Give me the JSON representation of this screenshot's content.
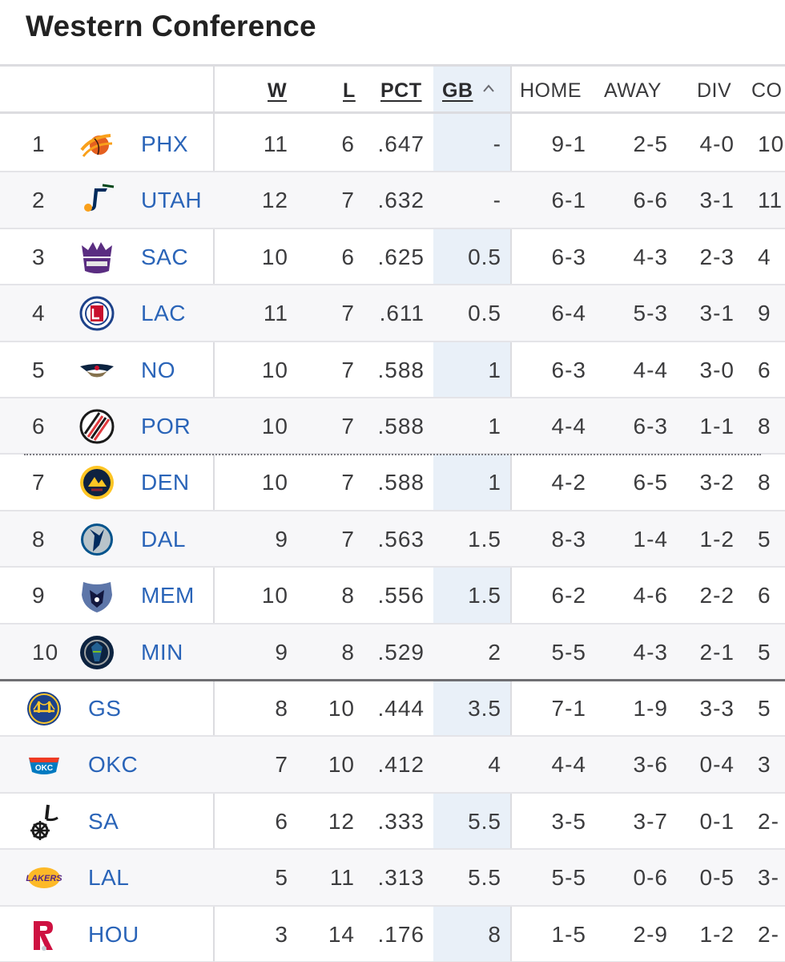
{
  "title": "Western Conference",
  "columns": {
    "w": "W",
    "l": "L",
    "pct": "PCT",
    "gb": "GB",
    "home": "HOME",
    "away": "AWAY",
    "div": "DIV",
    "conf": "CO"
  },
  "rows": [
    {
      "rank": "1",
      "team": "PHX",
      "w": "11",
      "l": "6",
      "pct": ".647",
      "gb": "-",
      "home": "9-1",
      "away": "2-5",
      "div": "4-0",
      "conf": "10",
      "logo": "suns-logo",
      "color": "#e56020"
    },
    {
      "rank": "2",
      "team": "UTAH",
      "w": "12",
      "l": "7",
      "pct": ".632",
      "gb": "-",
      "home": "6-1",
      "away": "6-6",
      "div": "3-1",
      "conf": "11",
      "logo": "jazz-logo",
      "color": "#002b5c"
    },
    {
      "rank": "3",
      "team": "SAC",
      "w": "10",
      "l": "6",
      "pct": ".625",
      "gb": "0.5",
      "home": "6-3",
      "away": "4-3",
      "div": "2-3",
      "conf": "4",
      "logo": "kings-logo",
      "color": "#5a2d81"
    },
    {
      "rank": "4",
      "team": "LAC",
      "w": "11",
      "l": "7",
      "pct": ".611",
      "gb": "0.5",
      "home": "6-4",
      "away": "5-3",
      "div": "3-1",
      "conf": "9",
      "logo": "clippers-logo",
      "color": "#c8102e"
    },
    {
      "rank": "5",
      "team": "NO",
      "w": "10",
      "l": "7",
      "pct": ".588",
      "gb": "1",
      "home": "6-3",
      "away": "4-4",
      "div": "3-0",
      "conf": "6",
      "logo": "pelicans-logo",
      "color": "#0c2340"
    },
    {
      "rank": "6",
      "team": "POR",
      "w": "10",
      "l": "7",
      "pct": ".588",
      "gb": "1",
      "home": "4-4",
      "away": "6-3",
      "div": "1-1",
      "conf": "8",
      "logo": "blazers-logo",
      "color": "#e03a3e"
    },
    {
      "rank": "7",
      "team": "DEN",
      "w": "10",
      "l": "7",
      "pct": ".588",
      "gb": "1",
      "home": "4-2",
      "away": "6-5",
      "div": "3-2",
      "conf": "8",
      "logo": "nuggets-logo",
      "color": "#0e2240"
    },
    {
      "rank": "8",
      "team": "DAL",
      "w": "9",
      "l": "7",
      "pct": ".563",
      "gb": "1.5",
      "home": "8-3",
      "away": "1-4",
      "div": "1-2",
      "conf": "5",
      "logo": "mavericks-logo",
      "color": "#00538c"
    },
    {
      "rank": "9",
      "team": "MEM",
      "w": "10",
      "l": "8",
      "pct": ".556",
      "gb": "1.5",
      "home": "6-2",
      "away": "4-6",
      "div": "2-2",
      "conf": "6",
      "logo": "grizzlies-logo",
      "color": "#5d76a9"
    },
    {
      "rank": "10",
      "team": "MIN",
      "w": "9",
      "l": "8",
      "pct": ".529",
      "gb": "2",
      "home": "5-5",
      "away": "4-3",
      "div": "2-1",
      "conf": "5",
      "logo": "timberwolves-logo",
      "color": "#0c2340"
    },
    {
      "rank": "",
      "team": "GS",
      "w": "8",
      "l": "10",
      "pct": ".444",
      "gb": "3.5",
      "home": "7-1",
      "away": "1-9",
      "div": "3-3",
      "conf": "5",
      "logo": "warriors-logo",
      "color": "#1d428a"
    },
    {
      "rank": "",
      "team": "OKC",
      "w": "7",
      "l": "10",
      "pct": ".412",
      "gb": "4",
      "home": "4-4",
      "away": "3-6",
      "div": "0-4",
      "conf": "3",
      "logo": "thunder-logo",
      "color": "#007ac1"
    },
    {
      "rank": "",
      "team": "SA",
      "w": "6",
      "l": "12",
      "pct": ".333",
      "gb": "5.5",
      "home": "3-5",
      "away": "3-7",
      "div": "0-1",
      "conf": "2-",
      "logo": "spurs-logo",
      "color": "#1a1a1a"
    },
    {
      "rank": "",
      "team": "LAL",
      "w": "5",
      "l": "11",
      "pct": ".313",
      "gb": "5.5",
      "home": "5-5",
      "away": "0-6",
      "div": "0-5",
      "conf": "3-",
      "logo": "lakers-logo",
      "color": "#552583"
    },
    {
      "rank": "",
      "team": "HOU",
      "w": "3",
      "l": "14",
      "pct": ".176",
      "gb": "8",
      "home": "1-5",
      "away": "2-9",
      "div": "1-2",
      "conf": "2-",
      "logo": "rockets-logo",
      "color": "#ce1141"
    }
  ]
}
